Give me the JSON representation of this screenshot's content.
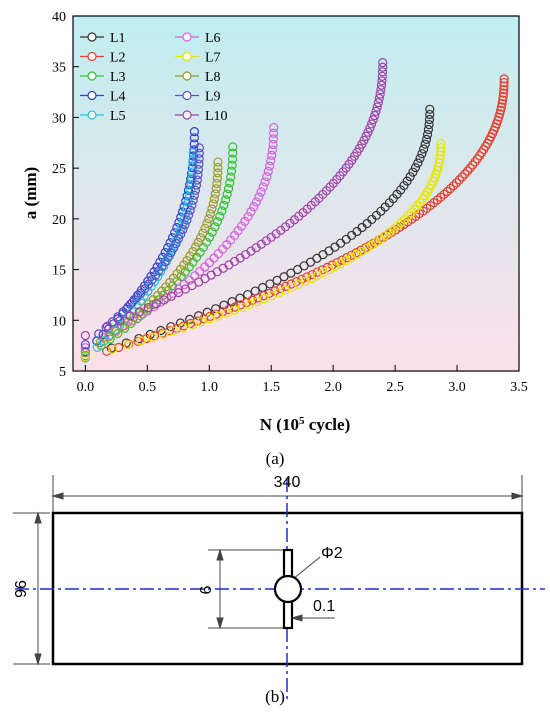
{
  "chart_data": {
    "type": "scatter",
    "title": "",
    "xlabel_main": "N (10",
    "xlabel_sup": "5",
    "xlabel_tail": " cycle)",
    "ylabel": "a (mm)",
    "xlim": [
      -0.1,
      3.5
    ],
    "ylim": [
      5,
      40
    ],
    "xticks": [
      "0.0",
      "0.5",
      "1.0",
      "1.5",
      "2.0",
      "2.5",
      "3.0",
      "3.5"
    ],
    "xtick_values": [
      0,
      0.5,
      1.0,
      1.5,
      2.0,
      2.5,
      3.0,
      3.5
    ],
    "yticks": [
      "5",
      "10",
      "15",
      "20",
      "25",
      "30",
      "35",
      "40"
    ],
    "ytick_values": [
      5,
      10,
      15,
      20,
      25,
      30,
      35,
      40
    ],
    "legend_position": "top-left",
    "series": [
      {
        "name": "L1",
        "color": "#333333",
        "x0": 0.0,
        "x1": 2.78,
        "a0": 6.4,
        "a1": 30.8,
        "count": 60
      },
      {
        "name": "L2",
        "color": "#e5402d",
        "x0": 0.0,
        "x1": 3.38,
        "a0": 6.3,
        "a1": 33.8,
        "count": 100
      },
      {
        "name": "L3",
        "color": "#2ec42e",
        "x0": 0.0,
        "x1": 1.19,
        "a0": 6.5,
        "a1": 27.1,
        "count": 40
      },
      {
        "name": "L4",
        "color": "#2a3fd0",
        "x0": 0.0,
        "x1": 0.88,
        "a0": 6.9,
        "a1": 28.6,
        "count": 42
      },
      {
        "name": "L5",
        "color": "#1bc7e0",
        "x0": 0.0,
        "x1": 0.87,
        "a0": 6.3,
        "a1": 26.5,
        "count": 38
      },
      {
        "name": "L6",
        "color": "#d75fdb",
        "x0": 0.0,
        "x1": 1.52,
        "a0": 7.3,
        "a1": 29.0,
        "count": 45
      },
      {
        "name": "L7",
        "color": "#e6e600",
        "x0": 0.0,
        "x1": 2.87,
        "a0": 6.4,
        "a1": 27.4,
        "count": 65
      },
      {
        "name": "L8",
        "color": "#9a9a2a",
        "x0": 0.0,
        "x1": 1.07,
        "a0": 6.8,
        "a1": 25.6,
        "count": 40
      },
      {
        "name": "L9",
        "color": "#5a4fc8",
        "x0": 0.0,
        "x1": 0.92,
        "a0": 7.6,
        "a1": 27.0,
        "count": 40
      },
      {
        "name": "L10",
        "color": "#a43fa8",
        "x0": 0.0,
        "x1": 2.4,
        "a0": 8.5,
        "a1": 35.4,
        "count": 70
      }
    ],
    "background_gradient": [
      "#bfeef0",
      "#fde0ea"
    ]
  },
  "panel_a_label": "(a)",
  "panel_b_label": "(b)",
  "drawing": {
    "width_label": "340",
    "height_label": "96",
    "slot_length_label": "6",
    "hole_label": "Φ2",
    "slot_width_label": "0.1",
    "centerline_color": "#1a2cd6"
  }
}
